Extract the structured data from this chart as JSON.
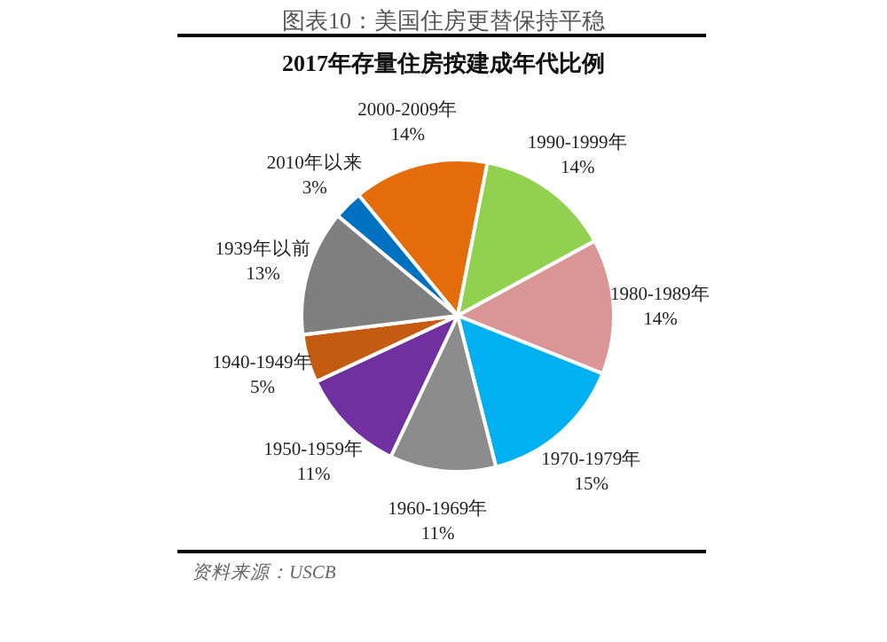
{
  "chart_data": {
    "type": "pie",
    "title": "图表10：美国住房更替保持平稳",
    "subtitle": "2017年存量住房按建成年代比例",
    "categories": [
      "2000-2009年",
      "1990-1999年",
      "1980-1989年",
      "1970-1979年",
      "1960-1969年",
      "1950-1959年",
      "1940-1949年",
      "1939年以前",
      "2010年以来"
    ],
    "values": [
      14,
      14,
      14,
      15,
      11,
      11,
      5,
      13,
      3
    ],
    "value_labels": [
      "14%",
      "14%",
      "14%",
      "15%",
      "11%",
      "11%",
      "5%",
      "13%",
      "3%"
    ],
    "colors": [
      "#e46c0a",
      "#92d050",
      "#d99694",
      "#00b0f0",
      "#8c8c8c",
      "#7030a0",
      "#c55a11",
      "#7f7f7f",
      "#0070c0"
    ],
    "annotations": [
      "资料来源：USCB"
    ]
  }
}
